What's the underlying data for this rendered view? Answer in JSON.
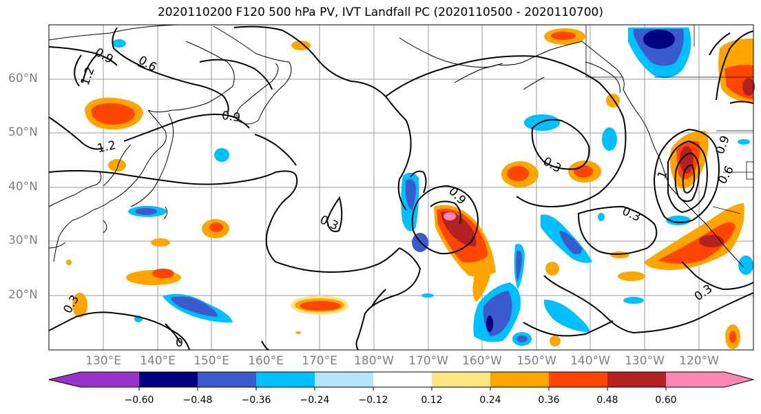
{
  "title": "2020110200 F120 500 hPa PV, IVT Landfall PC (2020110500 - 2020110700)",
  "lat_labels": [
    "60°N",
    "50°N",
    "40°N",
    "30°N",
    "20°N"
  ],
  "lon_labels": [
    "130°E",
    "140°E",
    "150°E",
    "160°E",
    "170°E",
    "180°W",
    "170°W",
    "160°W",
    "150°W",
    "140°W",
    "130°W",
    "120°W"
  ],
  "contour_labels": {
    "a": "0.9",
    "b": "0.6",
    "c": "1.2",
    "d": "0.9",
    "e": "1.2",
    "f": "0.3",
    "g": "0.9",
    "h": "0.3",
    "i": "0.3",
    "j": "0.3",
    "k": "0.9",
    "l": "0.6",
    "m": "1",
    "n": "0.3",
    "o": "0"
  },
  "colorbar": {
    "colors": [
      "#9933cc",
      "#000080",
      "#3b5bcc",
      "#00bfff",
      "#b3e5fc",
      "#ffffff",
      "#ffffff",
      "#ffe680",
      "#ffa500",
      "#ff4500",
      "#b22222",
      "#ff85b3"
    ],
    "ticks": [
      "−0.60",
      "−0.48",
      "−0.36",
      "−0.24",
      "−0.12",
      "0.12",
      "0.24",
      "0.36",
      "0.48",
      "0.60"
    ]
  },
  "fill_colors": {
    "neg_light": "#b3e5fc",
    "neg_mid": "#00bfff",
    "neg_strong": "#3b5bcc",
    "neg_max": "#000080",
    "pos_light": "#ffe680",
    "pos_mid": "#ffa500",
    "pos_strong": "#ff4500",
    "pos_max": "#b22222",
    "pos_top": "#ff85b3"
  }
}
